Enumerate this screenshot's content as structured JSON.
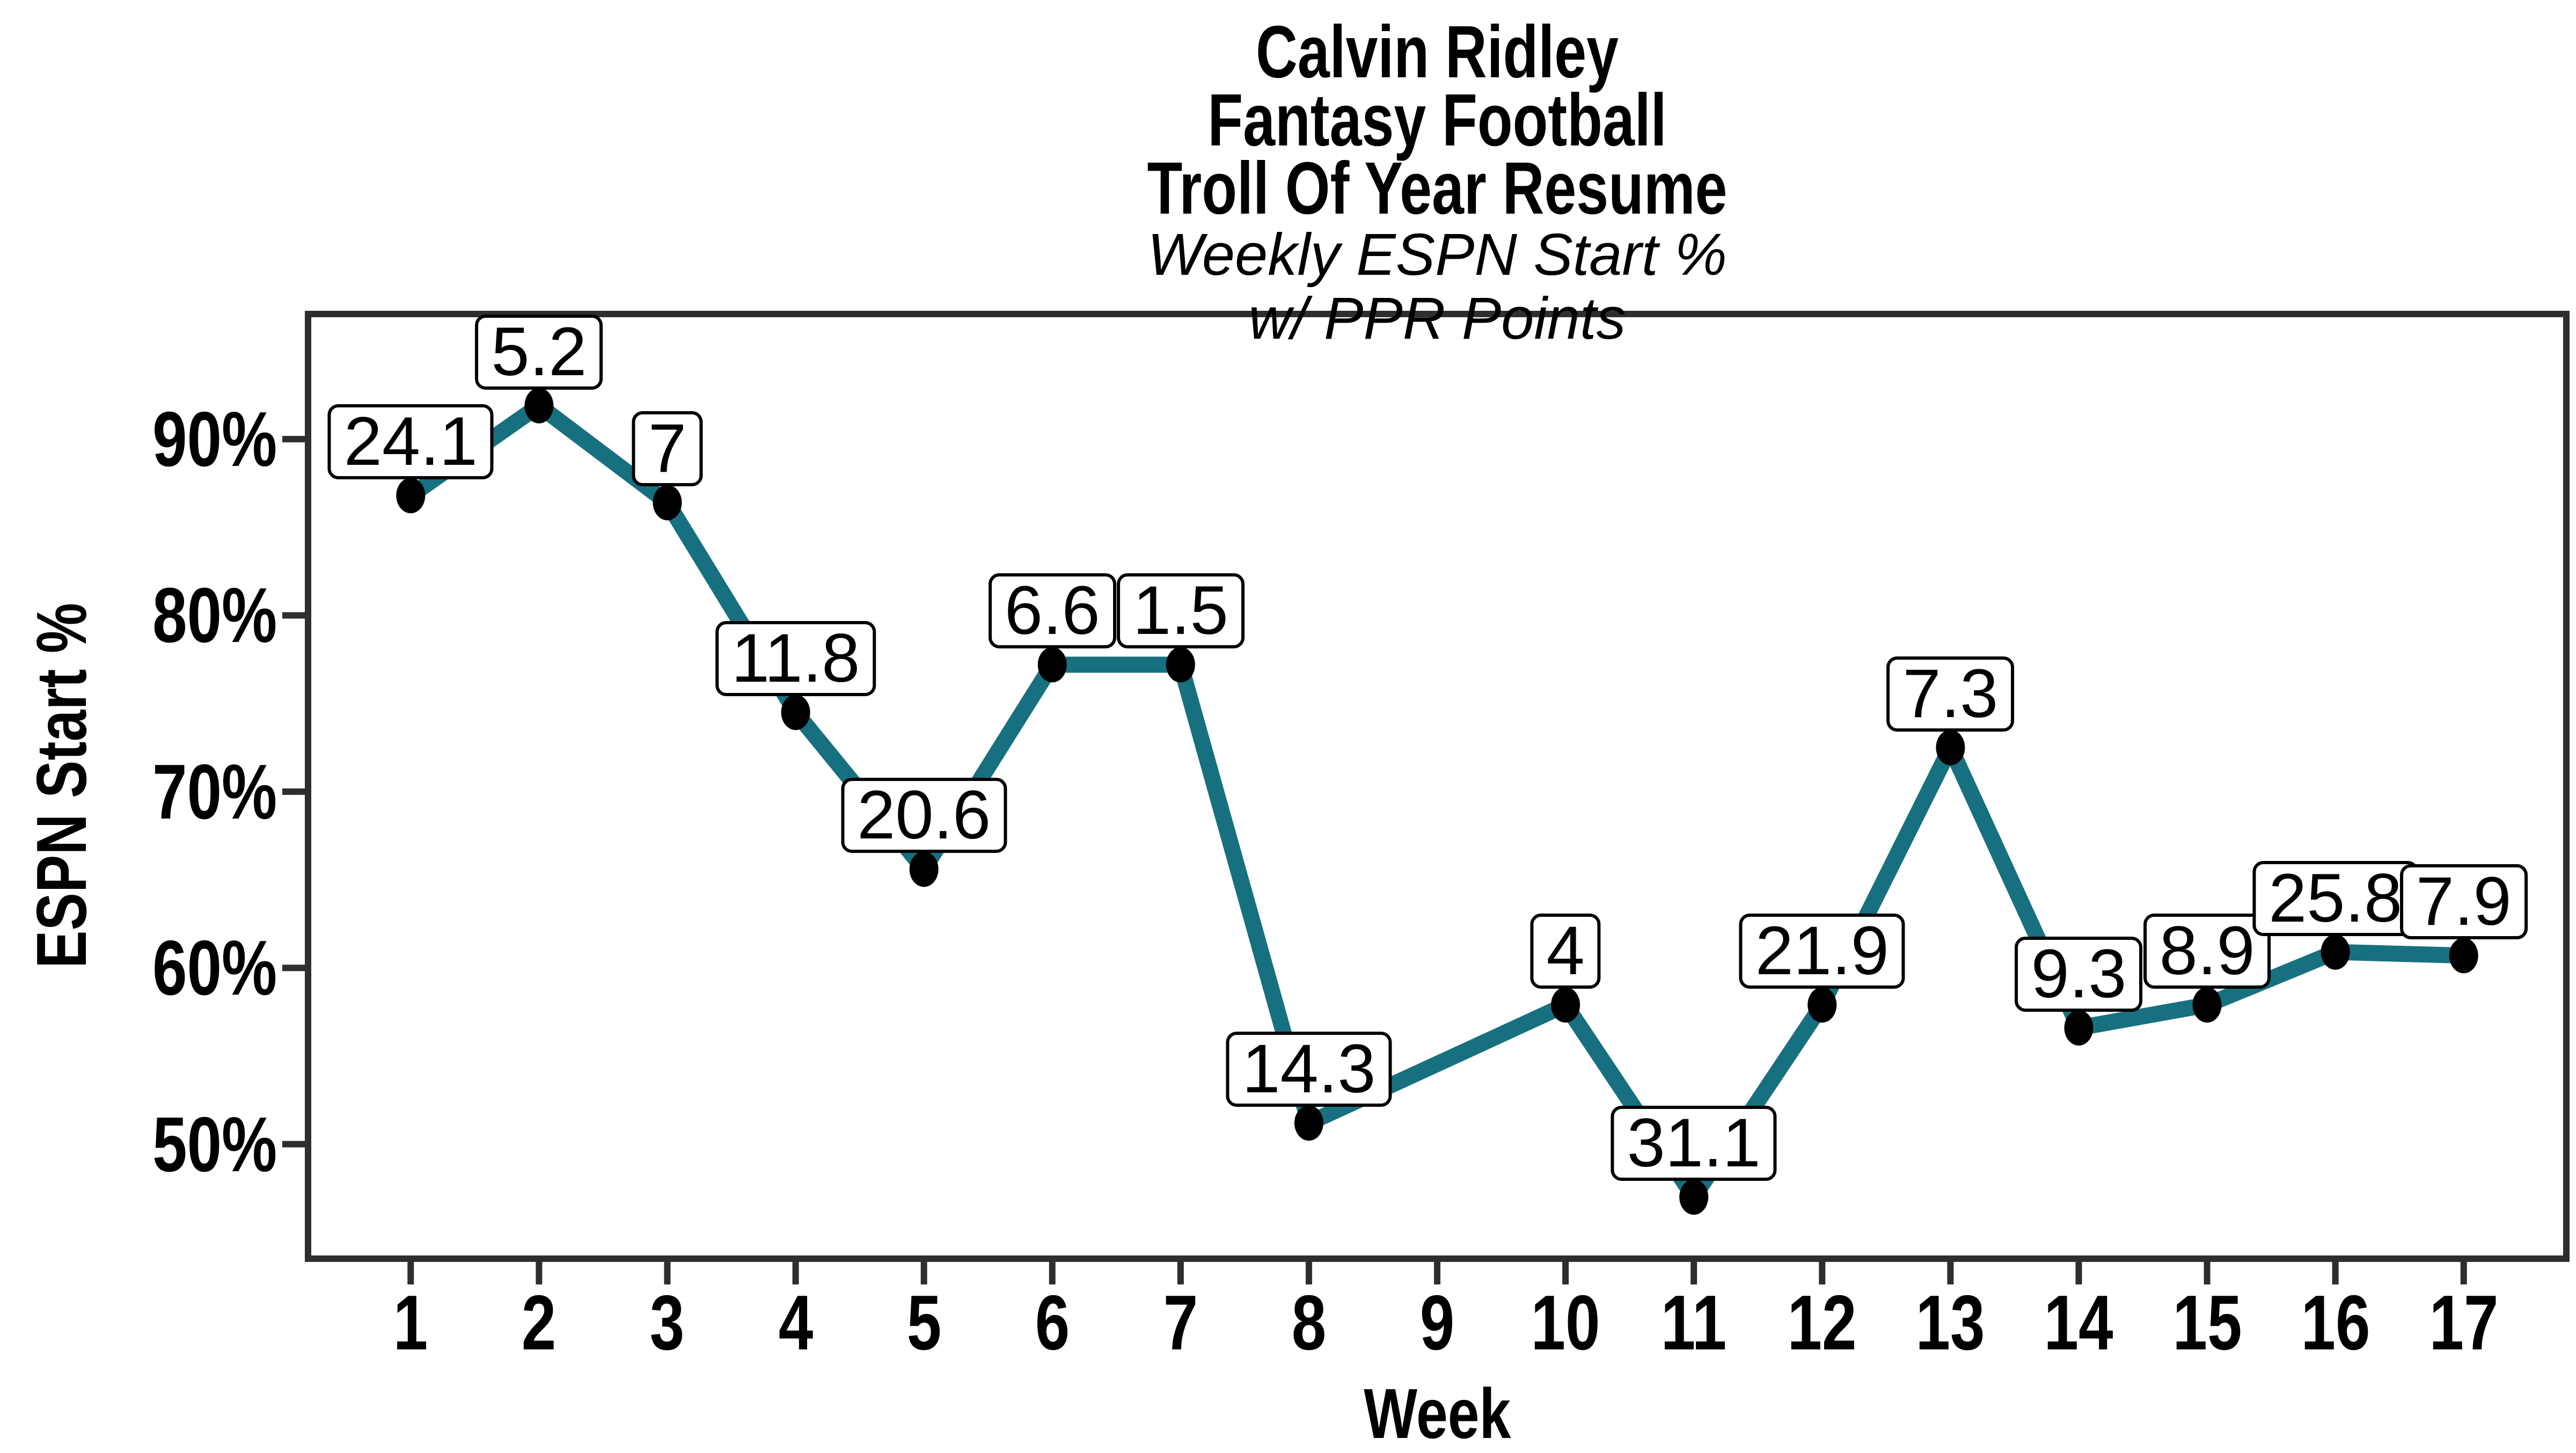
{
  "header": {
    "title_lines": [
      "Calvin Ridley",
      "Fantasy Football",
      "Troll Of Year Resume"
    ],
    "subtitle_lines": [
      "Weekly ESPN Start %",
      "w/ PPR Points"
    ]
  },
  "chart_data": {
    "type": "line",
    "title": "Calvin Ridley Fantasy Football Troll Of Year Resume",
    "subtitle": "Weekly ESPN Start % w/ PPR Points",
    "xlabel": "Week",
    "ylabel": "ESPN Start %",
    "x_range": [
      0.2,
      17.8
    ],
    "y_range": [
      43.5,
      97.1
    ],
    "x_ticks": [
      1,
      2,
      3,
      4,
      5,
      6,
      7,
      8,
      9,
      10,
      11,
      12,
      13,
      14,
      15,
      16,
      17
    ],
    "y_ticks": [
      {
        "value": 50,
        "label": "50%"
      },
      {
        "value": 60,
        "label": "60%"
      },
      {
        "value": 70,
        "label": "70%"
      },
      {
        "value": 80,
        "label": "80%"
      },
      {
        "value": 90,
        "label": "90%"
      }
    ],
    "grid": false,
    "legend": false,
    "line_color": "#17707f",
    "axis_color": "#2e2e2e",
    "marker_color": "#000000",
    "label_box": {
      "background": "#ffffff",
      "border": "#000000"
    },
    "points": [
      {
        "week": 1,
        "espn_start_pct": 86.8,
        "ppr_points": 24.1,
        "label": "24.1"
      },
      {
        "week": 2,
        "espn_start_pct": 91.9,
        "ppr_points": 5.2,
        "label": "5.2"
      },
      {
        "week": 3,
        "espn_start_pct": 86.4,
        "ppr_points": 7,
        "label": "7"
      },
      {
        "week": 4,
        "espn_start_pct": 74.5,
        "ppr_points": 11.8,
        "label": "11.8"
      },
      {
        "week": 5,
        "espn_start_pct": 65.6,
        "ppr_points": 20.6,
        "label": "20.6"
      },
      {
        "week": 6,
        "espn_start_pct": 77.2,
        "ppr_points": 6.6,
        "label": "6.6"
      },
      {
        "week": 7,
        "espn_start_pct": 77.2,
        "ppr_points": 1.5,
        "label": "1.5"
      },
      {
        "week": 8,
        "espn_start_pct": 51.2,
        "ppr_points": 14.3,
        "label": "14.3"
      },
      {
        "week": 10,
        "espn_start_pct": 57.9,
        "ppr_points": 4,
        "label": "4"
      },
      {
        "week": 11,
        "espn_start_pct": 47.0,
        "ppr_points": 31.1,
        "label": "31.1"
      },
      {
        "week": 12,
        "espn_start_pct": 57.9,
        "ppr_points": 21.9,
        "label": "21.9"
      },
      {
        "week": 13,
        "espn_start_pct": 72.5,
        "ppr_points": 7.3,
        "label": "7.3"
      },
      {
        "week": 14,
        "espn_start_pct": 56.6,
        "ppr_points": 9.3,
        "label": "9.3"
      },
      {
        "week": 15,
        "espn_start_pct": 57.9,
        "ppr_points": 8.9,
        "label": "8.9"
      },
      {
        "week": 16,
        "espn_start_pct": 60.9,
        "ppr_points": 25.8,
        "label": "25.8"
      },
      {
        "week": 17,
        "espn_start_pct": 60.7,
        "ppr_points": 7.9,
        "label": "7.9"
      }
    ]
  }
}
